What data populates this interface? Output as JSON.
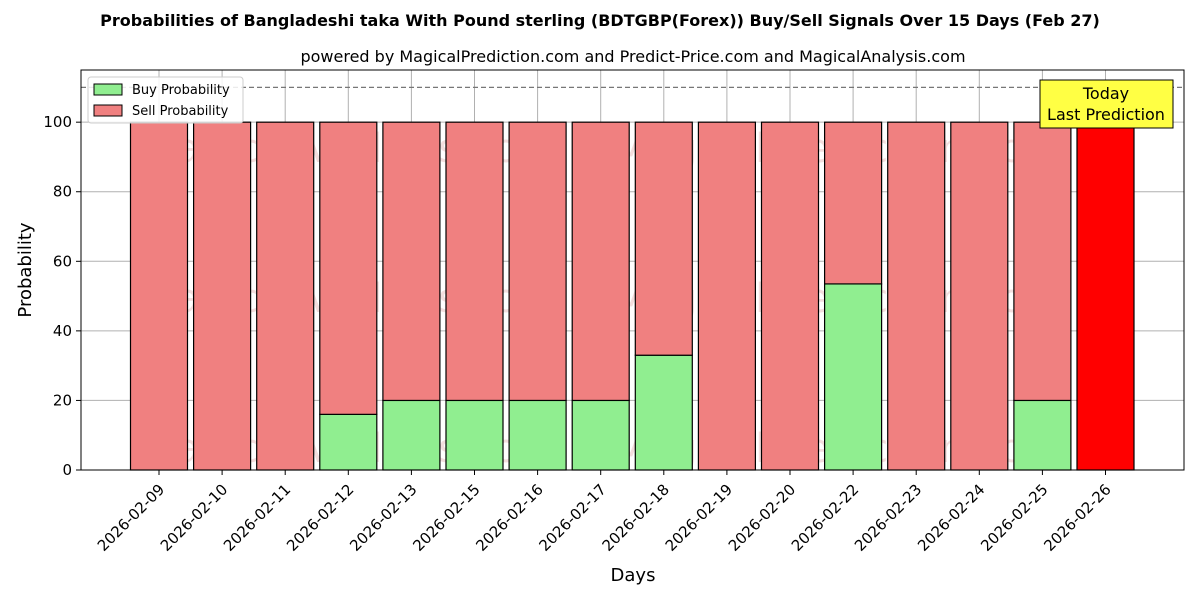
{
  "chart_data": {
    "type": "bar",
    "stacked": true,
    "title": "Probabilities of Bangladeshi taka With Pound sterling (BDTGBP(Forex)) Buy/Sell Signals Over 15 Days (Feb 27)",
    "subtitle": "powered by MagicalPrediction.com and Predict-Price.com and MagicalAnalysis.com",
    "xlabel": "Days",
    "ylabel": "Probability",
    "ylim": [
      0,
      115
    ],
    "yticks": [
      0,
      20,
      40,
      60,
      80,
      100
    ],
    "grid": true,
    "legend_position": "top-left",
    "reference_line": 110,
    "categories": [
      "2026-02-09",
      "2026-02-10",
      "2026-02-11",
      "2026-02-12",
      "2026-02-13",
      "2026-02-15",
      "2026-02-16",
      "2026-02-17",
      "2026-02-18",
      "2026-02-19",
      "2026-02-20",
      "2026-02-22",
      "2026-02-23",
      "2026-02-24",
      "2026-02-25",
      "2026-02-26"
    ],
    "series": [
      {
        "name": "Buy Probability",
        "color": "#90ee90",
        "values": [
          0,
          0,
          0,
          16,
          20,
          20,
          20,
          20,
          33,
          0,
          0,
          53.5,
          0,
          0,
          20,
          0
        ]
      },
      {
        "name": "Sell Probability",
        "color": "#f08080",
        "values": [
          100,
          100,
          100,
          84,
          80,
          80,
          80,
          80,
          67,
          100,
          100,
          46.5,
          100,
          100,
          80,
          100
        ]
      }
    ],
    "highlight": {
      "index": 15,
      "color": "#ff0000"
    },
    "annotation": {
      "line1": "Today",
      "line2": "Last Prediction",
      "background": "#ffff44"
    },
    "watermark": [
      "MagicalAnalysis.com",
      "MagicalPrediction.com"
    ]
  }
}
